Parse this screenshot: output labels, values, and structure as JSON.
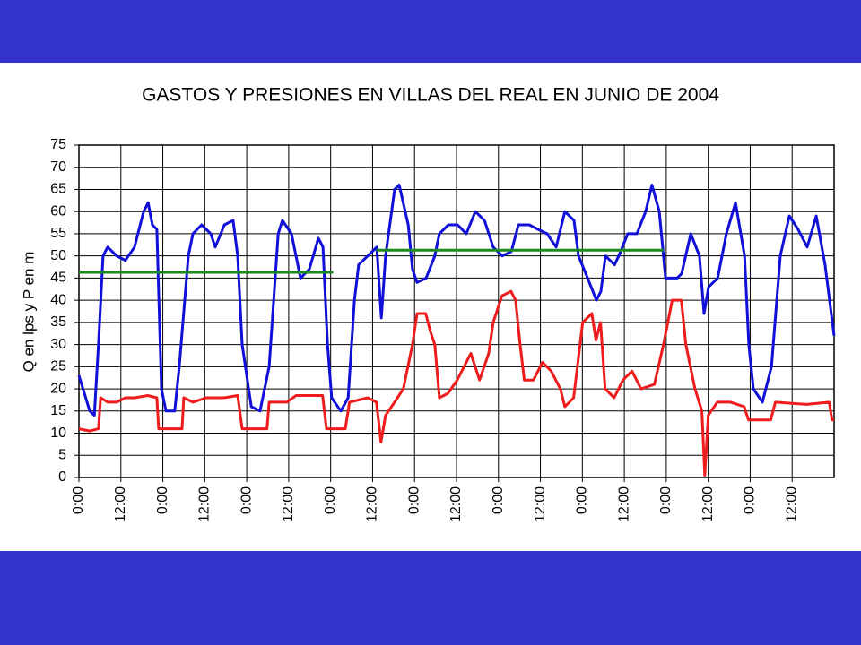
{
  "chart_data": {
    "type": "line",
    "title": "GASTOS Y PRESIONES EN VILLAS DEL REAL EN JUNIO DE 2004",
    "y_label": "Q en lps y P en m",
    "xlim": [
      0,
      216
    ],
    "xticks": [
      {
        "value": 0,
        "label": "0:00"
      },
      {
        "value": 12,
        "label": "12:00"
      },
      {
        "value": 24,
        "label": "0:00"
      },
      {
        "value": 36,
        "label": "12:00"
      },
      {
        "value": 48,
        "label": "0:00"
      },
      {
        "value": 60,
        "label": "12:00"
      },
      {
        "value": 72,
        "label": "0:00"
      },
      {
        "value": 84,
        "label": "12:00"
      },
      {
        "value": 96,
        "label": "0:00"
      },
      {
        "value": 108,
        "label": "12:00"
      },
      {
        "value": 120,
        "label": "0:00"
      },
      {
        "value": 132,
        "label": "12:00"
      },
      {
        "value": 144,
        "label": "0:00"
      },
      {
        "value": 156,
        "label": "12:00"
      },
      {
        "value": 168,
        "label": "0:00"
      },
      {
        "value": 180,
        "label": "12:00"
      },
      {
        "value": 192,
        "label": "0:00"
      },
      {
        "value": 204,
        "label": "12:00"
      }
    ],
    "ylim": [
      0,
      75
    ],
    "yticks": [
      0,
      5,
      10,
      15,
      20,
      25,
      30,
      35,
      40,
      45,
      50,
      55,
      60,
      65,
      70,
      75
    ],
    "grid": true,
    "series": [
      {
        "color": "#1010d8",
        "x": [
          0,
          3.1,
          4.4,
          5.6,
          6.9,
          8.2,
          10.8,
          13.3,
          15.9,
          18.5,
          19.8,
          21.0,
          22.3,
          23.6,
          24.9,
          27.4,
          28.7,
          31.3,
          32.6,
          35.1,
          37.7,
          39.0,
          41.6,
          44.1,
          45.4,
          46.7,
          49.3,
          51.8,
          54.4,
          57.0,
          58.2,
          60.8,
          63.4,
          65.9,
          68.5,
          69.8,
          71.1,
          72.3,
          74.9,
          77.0,
          78.8,
          80.0,
          82.6,
          85.2,
          86.5,
          87.7,
          90.3,
          91.6,
          94.2,
          95.4,
          96.7,
          99.3,
          101.8,
          103.1,
          105.7,
          108.3,
          110.8,
          113.4,
          116.0,
          118.5,
          121.1,
          123.7,
          125.7,
          128.8,
          131.3,
          133.9,
          136.5,
          139.0,
          141.6,
          142.9,
          145.5,
          148.0,
          149.3,
          150.6,
          153.2,
          154.4,
          157.0,
          159.6,
          162.1,
          163.9,
          166.0,
          167.8,
          171.1,
          172.4,
          175.0,
          177.5,
          178.8,
          180.1,
          182.7,
          185.2,
          187.8,
          190.4,
          191.6,
          192.9,
          195.5,
          198.1,
          200.6,
          203.2,
          205.7,
          208.3,
          210.9,
          213.4,
          216
        ],
        "values": [
          23,
          15,
          14,
          30,
          50,
          52,
          50,
          49,
          52,
          60,
          62,
          57,
          56,
          20,
          15,
          15,
          25,
          50,
          55,
          57,
          55,
          52,
          57,
          58,
          50,
          30,
          16,
          15,
          25,
          55,
          58,
          55,
          45,
          47,
          54,
          52,
          30,
          18,
          15,
          18,
          40,
          48,
          50,
          52,
          36,
          50,
          65,
          66,
          57,
          47,
          44,
          45,
          50,
          55,
          57,
          57,
          55,
          60,
          58,
          52,
          50,
          51,
          57,
          57,
          56,
          55,
          52,
          60,
          58,
          50,
          45,
          40,
          42,
          50,
          48,
          50,
          55,
          55,
          60,
          66,
          60,
          45,
          45,
          46,
          55,
          50,
          37,
          43,
          45,
          55,
          62,
          50,
          30,
          20,
          17,
          25,
          50,
          59,
          56,
          52,
          59,
          48,
          32
        ]
      },
      {
        "color": "#ee1c1c",
        "x": [
          0,
          3.1,
          5.6,
          6.2,
          8.2,
          10.8,
          13.3,
          15.9,
          19.7,
          22.3,
          22.8,
          26.2,
          29.5,
          30.0,
          32.6,
          36.4,
          41.5,
          45.4,
          46.7,
          51.8,
          53.8,
          54.4,
          59.5,
          62.1,
          69.7,
          70.8,
          76.2,
          77.4,
          82.6,
          85.1,
          86.4,
          87.7,
          90.3,
          92.8,
          95.4,
          96.7,
          99.2,
          100.5,
          101.8,
          103.1,
          105.6,
          108.2,
          110.8,
          112.1,
          114.6,
          117.2,
          118.5,
          121.0,
          123.6,
          124.9,
          126.2,
          127.4,
          130.0,
          132.6,
          135.1,
          137.7,
          139.0,
          141.5,
          144.1,
          146.7,
          147.9,
          149.2,
          150.5,
          153.1,
          155.6,
          158.2,
          160.8,
          164.6,
          167.2,
          169.7,
          172.3,
          173.6,
          176.2,
          178.2,
          179.0,
          180.0,
          182.6,
          186.4,
          190.3,
          191.5,
          197.9,
          199.2,
          208.2,
          214.6,
          215.4,
          216
        ],
        "values": [
          11,
          10.5,
          11,
          18,
          17,
          17,
          18,
          18,
          18.5,
          18,
          11,
          11,
          11,
          18,
          17,
          18,
          18,
          18.5,
          11,
          11,
          11,
          17,
          17,
          18.5,
          18.5,
          11,
          11,
          17,
          18,
          17,
          8,
          14,
          17,
          20,
          30,
          37,
          37,
          33,
          30,
          18,
          19,
          22,
          26,
          28,
          22,
          28,
          35,
          41,
          42,
          40,
          30,
          22,
          22,
          26,
          24,
          20,
          16,
          18,
          35,
          37,
          31,
          35,
          20,
          18,
          22,
          24,
          20,
          21,
          30,
          40,
          40,
          30,
          20,
          15,
          0.5,
          14,
          17,
          17,
          16,
          13,
          13,
          17,
          16.5,
          17,
          13,
          13
        ]
      },
      {
        "color": "#1a8a1a",
        "x": [
          0,
          72.7
        ],
        "values": [
          46.3,
          46.3
        ]
      },
      {
        "color": "#1a8a1a",
        "x": [
          85.1,
          167.2
        ],
        "values": [
          51.3,
          51.3
        ]
      }
    ]
  }
}
